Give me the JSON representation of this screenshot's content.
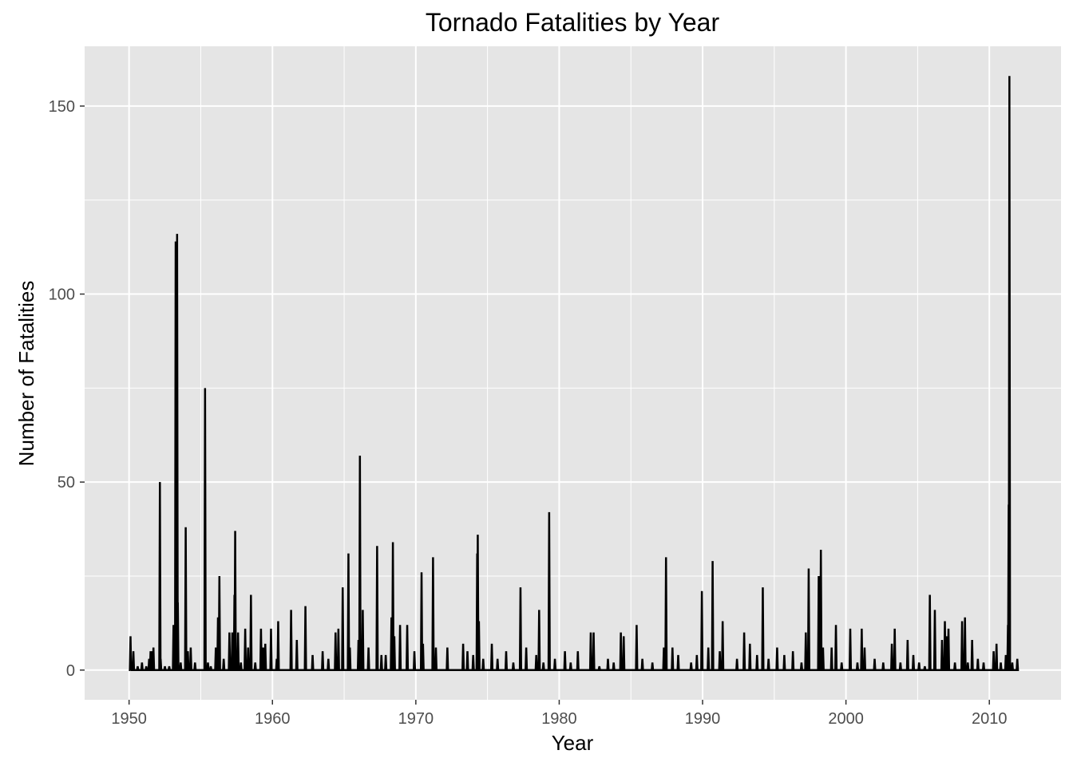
{
  "chart_data": {
    "type": "line",
    "title": "Tornado Fatalities by Year",
    "xlabel": "Year",
    "ylabel": "Number of Fatalities",
    "xlim": [
      1946.9,
      2015.0
    ],
    "ylim": [
      -7.9,
      165.9
    ],
    "x_ticks": [
      1950,
      1960,
      1970,
      1980,
      1990,
      2000,
      2010
    ],
    "y_ticks": [
      0,
      50,
      100,
      150
    ],
    "grid": true,
    "panel_background": "#e5e5e5",
    "grid_color": "#ffffff",
    "line_color": "#000000",
    "series": [
      {
        "points": [
          [
            1950.05,
            0
          ],
          [
            1950.1,
            9
          ],
          [
            1950.15,
            0
          ],
          [
            1950.3,
            5
          ],
          [
            1950.35,
            0
          ],
          [
            1950.6,
            1
          ],
          [
            1950.9,
            2
          ],
          [
            1951.2,
            1
          ],
          [
            1951.4,
            3
          ],
          [
            1951.5,
            5
          ],
          [
            1951.6,
            5
          ],
          [
            1951.7,
            6
          ],
          [
            1952.15,
            50
          ],
          [
            1952.2,
            3
          ],
          [
            1952.5,
            1
          ],
          [
            1952.8,
            1
          ],
          [
            1953.1,
            12
          ],
          [
            1953.25,
            114
          ],
          [
            1953.35,
            116
          ],
          [
            1953.4,
            18
          ],
          [
            1953.6,
            2
          ],
          [
            1953.95,
            38
          ],
          [
            1954.1,
            5
          ],
          [
            1954.3,
            6
          ],
          [
            1954.6,
            2
          ],
          [
            1955.3,
            75
          ],
          [
            1955.5,
            2
          ],
          [
            1955.7,
            1
          ],
          [
            1956.05,
            6
          ],
          [
            1956.2,
            14
          ],
          [
            1956.3,
            25
          ],
          [
            1956.6,
            3
          ],
          [
            1957.0,
            10
          ],
          [
            1957.2,
            10
          ],
          [
            1957.35,
            20
          ],
          [
            1957.4,
            37
          ],
          [
            1957.6,
            10
          ],
          [
            1957.8,
            2
          ],
          [
            1958.1,
            11
          ],
          [
            1958.3,
            6
          ],
          [
            1958.5,
            20
          ],
          [
            1958.8,
            2
          ],
          [
            1959.2,
            11
          ],
          [
            1959.35,
            6
          ],
          [
            1959.5,
            7
          ],
          [
            1959.9,
            11
          ],
          [
            1960.3,
            3
          ],
          [
            1960.4,
            13
          ],
          [
            1961.3,
            16
          ],
          [
            1961.7,
            8
          ],
          [
            1962.3,
            17
          ],
          [
            1962.8,
            4
          ],
          [
            1963.5,
            5
          ],
          [
            1963.9,
            3
          ],
          [
            1964.4,
            10
          ],
          [
            1964.6,
            11
          ],
          [
            1964.9,
            22
          ],
          [
            1965.3,
            31
          ],
          [
            1965.4,
            6
          ],
          [
            1966.0,
            8
          ],
          [
            1966.1,
            57
          ],
          [
            1966.3,
            16
          ],
          [
            1966.7,
            6
          ],
          [
            1967.3,
            33
          ],
          [
            1967.6,
            4
          ],
          [
            1967.9,
            4
          ],
          [
            1968.3,
            14
          ],
          [
            1968.4,
            34
          ],
          [
            1968.5,
            9
          ],
          [
            1968.9,
            12
          ],
          [
            1969.4,
            12
          ],
          [
            1969.9,
            5
          ],
          [
            1970.4,
            26
          ],
          [
            1970.5,
            7
          ],
          [
            1971.2,
            30
          ],
          [
            1971.4,
            6
          ],
          [
            1972.2,
            6
          ],
          [
            1973.3,
            7
          ],
          [
            1973.6,
            5
          ],
          [
            1974.0,
            4
          ],
          [
            1974.28,
            31
          ],
          [
            1974.32,
            36
          ],
          [
            1974.4,
            13
          ],
          [
            1974.7,
            3
          ],
          [
            1975.3,
            7
          ],
          [
            1975.7,
            3
          ],
          [
            1976.3,
            5
          ],
          [
            1976.8,
            2
          ],
          [
            1977.3,
            22
          ],
          [
            1977.7,
            6
          ],
          [
            1978.4,
            4
          ],
          [
            1978.6,
            16
          ],
          [
            1978.9,
            2
          ],
          [
            1979.3,
            42
          ],
          [
            1979.7,
            3
          ],
          [
            1980.4,
            5
          ],
          [
            1980.8,
            2
          ],
          [
            1981.3,
            5
          ],
          [
            1982.2,
            10
          ],
          [
            1982.4,
            10
          ],
          [
            1982.8,
            1
          ],
          [
            1983.4,
            3
          ],
          [
            1983.8,
            2
          ],
          [
            1984.3,
            10
          ],
          [
            1984.5,
            9
          ],
          [
            1985.4,
            12
          ],
          [
            1985.8,
            3
          ],
          [
            1986.5,
            2
          ],
          [
            1987.3,
            6
          ],
          [
            1987.45,
            30
          ],
          [
            1987.9,
            6
          ],
          [
            1988.3,
            4
          ],
          [
            1989.2,
            2
          ],
          [
            1989.6,
            4
          ],
          [
            1989.95,
            21
          ],
          [
            1990.4,
            6
          ],
          [
            1990.7,
            29
          ],
          [
            1991.2,
            5
          ],
          [
            1991.4,
            13
          ],
          [
            1992.4,
            3
          ],
          [
            1992.9,
            10
          ],
          [
            1993.3,
            7
          ],
          [
            1993.8,
            4
          ],
          [
            1994.2,
            22
          ],
          [
            1994.6,
            3
          ],
          [
            1995.2,
            6
          ],
          [
            1995.7,
            4
          ],
          [
            1996.3,
            5
          ],
          [
            1996.9,
            2
          ],
          [
            1997.2,
            10
          ],
          [
            1997.4,
            27
          ],
          [
            1998.1,
            25
          ],
          [
            1998.25,
            32
          ],
          [
            1998.4,
            6
          ],
          [
            1999.0,
            6
          ],
          [
            1999.3,
            12
          ],
          [
            1999.7,
            2
          ],
          [
            2000.3,
            11
          ],
          [
            2000.8,
            2
          ],
          [
            2001.1,
            11
          ],
          [
            2001.3,
            6
          ],
          [
            2002.0,
            3
          ],
          [
            2002.6,
            2
          ],
          [
            2003.2,
            7
          ],
          [
            2003.4,
            11
          ],
          [
            2003.8,
            2
          ],
          [
            2004.3,
            8
          ],
          [
            2004.7,
            4
          ],
          [
            2005.1,
            2
          ],
          [
            2005.5,
            1
          ],
          [
            2005.85,
            20
          ],
          [
            2006.2,
            16
          ],
          [
            2006.7,
            8
          ],
          [
            2006.9,
            13
          ],
          [
            2007.0,
            9
          ],
          [
            2007.15,
            11
          ],
          [
            2007.6,
            2
          ],
          [
            2008.1,
            13
          ],
          [
            2008.3,
            14
          ],
          [
            2008.5,
            2
          ],
          [
            2008.8,
            8
          ],
          [
            2009.2,
            3
          ],
          [
            2009.6,
            2
          ],
          [
            2010.3,
            5
          ],
          [
            2010.5,
            7
          ],
          [
            2010.8,
            2
          ],
          [
            2011.15,
            4
          ],
          [
            2011.3,
            12
          ],
          [
            2011.35,
            44
          ],
          [
            2011.4,
            158
          ],
          [
            2011.6,
            2
          ],
          [
            2011.95,
            3
          ]
        ]
      }
    ]
  }
}
